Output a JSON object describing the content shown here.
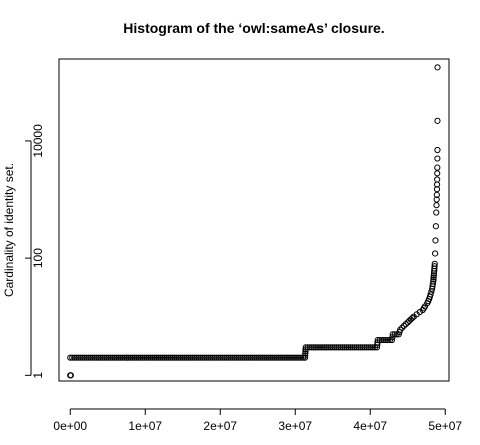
{
  "chart_data": {
    "type": "scatter",
    "title": "Histogram of the ‘owl:sameAs’ closure.",
    "xlabel": "",
    "ylabel": "Cardinality of identity set.",
    "x_scale": "linear",
    "y_scale": "log10",
    "xlim": [
      -1500000,
      50500000
    ],
    "ylim": [
      0.8,
      250000
    ],
    "x_ticks": [
      {
        "value": 0,
        "label": "0e+00"
      },
      {
        "value": 10000000,
        "label": "1e+07"
      },
      {
        "value": 20000000,
        "label": "2e+07"
      },
      {
        "value": 30000000,
        "label": "3e+07"
      },
      {
        "value": 40000000,
        "label": "4e+07"
      },
      {
        "value": 50000000,
        "label": "5e+07"
      }
    ],
    "y_ticks": [
      {
        "value": 1,
        "label": "1"
      },
      {
        "value": 100,
        "label": "100"
      },
      {
        "value": 10000,
        "label": "10000"
      }
    ],
    "grid": false,
    "legend": "none",
    "points": [
      [
        0,
        1
      ],
      [
        40000,
        1
      ],
      [
        80000,
        1
      ],
      [
        0,
        2
      ],
      [
        31300000,
        2
      ],
      [
        31400000,
        3
      ],
      [
        40900000,
        3
      ],
      [
        41000000,
        4
      ],
      [
        42900000,
        4
      ],
      [
        43000000,
        5
      ],
      [
        43800000,
        5
      ],
      [
        44000000,
        6
      ],
      [
        44500000,
        7
      ],
      [
        45000000,
        8
      ],
      [
        45400000,
        9
      ],
      [
        45800000,
        10
      ],
      [
        46200000,
        11
      ],
      [
        46600000,
        12
      ],
      [
        47000000,
        13
      ],
      [
        47300000,
        15
      ],
      [
        47600000,
        17
      ],
      [
        47850000,
        20
      ],
      [
        48050000,
        24
      ],
      [
        48250000,
        30
      ],
      [
        48400000,
        40
      ],
      [
        48500000,
        55
      ],
      [
        48600000,
        80
      ],
      [
        48650000,
        120
      ],
      [
        48700000,
        200
      ],
      [
        48750000,
        350
      ],
      [
        48800000,
        600
      ],
      [
        48830000,
        800
      ],
      [
        48860000,
        1000
      ],
      [
        48880000,
        1200
      ],
      [
        48900000,
        1500
      ],
      [
        48910000,
        1800
      ],
      [
        48920000,
        2200
      ],
      [
        48930000,
        2800
      ],
      [
        48940000,
        3500
      ],
      [
        48950000,
        5000
      ],
      [
        48960000,
        7000
      ],
      [
        48965000,
        22000
      ],
      [
        48970000,
        180000
      ]
    ]
  }
}
